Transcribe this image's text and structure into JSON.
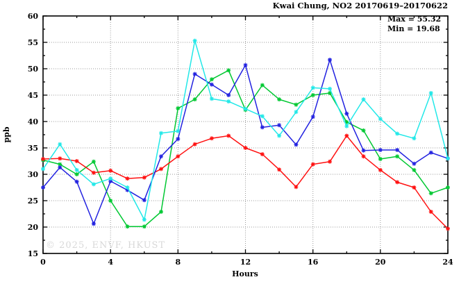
{
  "watermark": "© 2025, ENVF, HKUST",
  "chart_data": {
    "type": "line",
    "title": "Kwai Chung, NO2 20170619–20170622",
    "xlabel": "Hours",
    "ylabel": "ppb",
    "xlim": [
      0,
      24
    ],
    "ylim": [
      15,
      60
    ],
    "grid": true,
    "x_major_ticks": [
      0,
      4,
      8,
      12,
      16,
      20,
      24
    ],
    "x_minor_step": 2,
    "y_major_ticks": [
      15,
      20,
      25,
      30,
      35,
      40,
      45,
      50,
      55,
      60
    ],
    "y_minor_step": 2.5,
    "annotations": {
      "max": "Max = 55.32",
      "min": "Min = 19.68"
    },
    "x": [
      0,
      1,
      2,
      3,
      4,
      5,
      6,
      7,
      8,
      9,
      10,
      11,
      12,
      13,
      14,
      15,
      16,
      17,
      18,
      19,
      20,
      21,
      22,
      23,
      24
    ],
    "series": [
      {
        "name": "green",
        "color": "#00c832",
        "values": [
          32.7,
          31.9,
          30.0,
          32.4,
          25.0,
          20.1,
          20.1,
          22.9,
          42.5,
          44.2,
          48.0,
          49.7,
          42.2,
          46.9,
          44.2,
          43.2,
          45.0,
          45.4,
          39.9,
          38.3,
          32.9,
          33.4,
          30.8,
          26.4,
          27.5
        ]
      },
      {
        "name": "red",
        "color": "#ff1010",
        "values": [
          32.9,
          33.0,
          32.5,
          30.3,
          30.7,
          29.2,
          29.4,
          31.0,
          33.4,
          35.7,
          36.8,
          37.3,
          35.0,
          33.8,
          30.9,
          27.6,
          31.9,
          32.4,
          37.3,
          33.4,
          30.8,
          28.5,
          27.5,
          22.9,
          19.68
        ]
      },
      {
        "name": "blue",
        "color": "#2222e0",
        "values": [
          27.5,
          31.3,
          28.6,
          20.6,
          28.7,
          27.0,
          25.1,
          33.4,
          36.7,
          49.0,
          47.0,
          45.0,
          50.7,
          38.9,
          39.3,
          35.6,
          40.9,
          51.7,
          41.5,
          34.5,
          34.6,
          34.6,
          32.0,
          34.1,
          33.0
        ]
      },
      {
        "name": "cyan",
        "color": "#22e8e8",
        "values": [
          31.0,
          35.7,
          30.8,
          28.1,
          29.2,
          27.5,
          21.4,
          37.8,
          38.2,
          55.32,
          44.3,
          43.8,
          42.4,
          41.0,
          37.3,
          41.8,
          46.4,
          46.2,
          39.1,
          44.2,
          40.5,
          37.7,
          36.8,
          45.4,
          33.0
        ]
      }
    ]
  }
}
